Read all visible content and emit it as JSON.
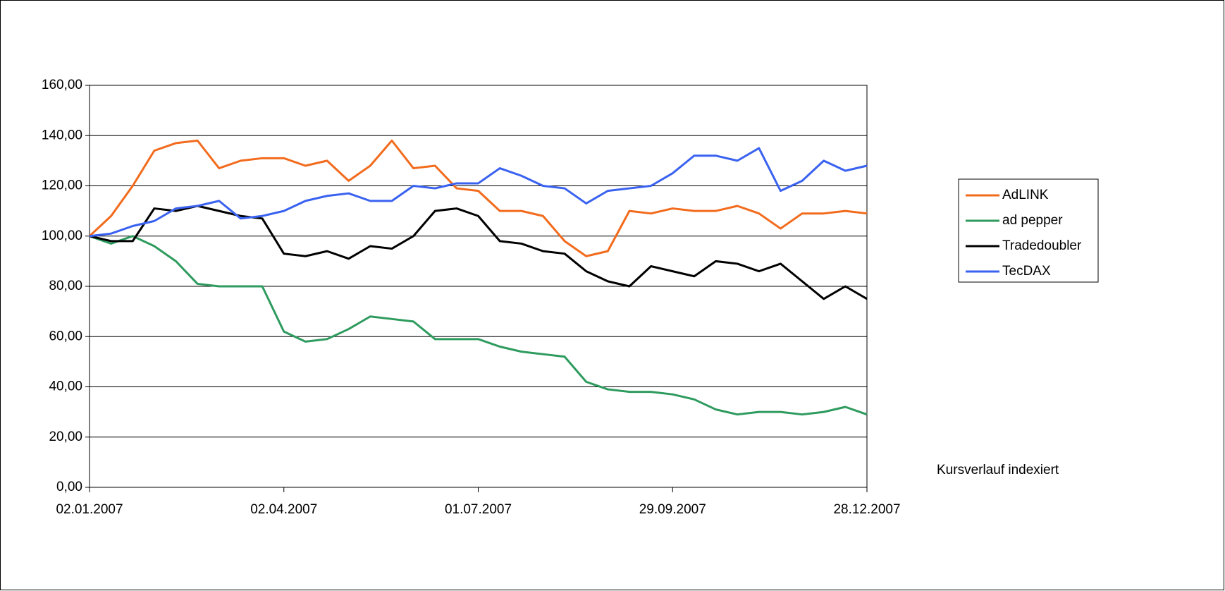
{
  "chart_data": {
    "type": "line",
    "annotation": "Kursverlauf indexiert",
    "x": [
      "2007-01-02",
      "2007-01-12",
      "2007-01-22",
      "2007-02-01",
      "2007-02-11",
      "2007-02-21",
      "2007-03-03",
      "2007-03-13",
      "2007-03-23",
      "2007-04-02",
      "2007-04-12",
      "2007-04-22",
      "2007-05-02",
      "2007-05-12",
      "2007-05-22",
      "2007-06-01",
      "2007-06-11",
      "2007-06-21",
      "2007-07-01",
      "2007-07-11",
      "2007-07-21",
      "2007-07-31",
      "2007-08-10",
      "2007-08-20",
      "2007-08-30",
      "2007-09-09",
      "2007-09-19",
      "2007-09-29",
      "2007-10-09",
      "2007-10-19",
      "2007-10-29",
      "2007-11-08",
      "2007-11-18",
      "2007-11-28",
      "2007-12-08",
      "2007-12-18",
      "2007-12-28"
    ],
    "series": [
      {
        "name": "AdLINK",
        "color": "#f26b1d",
        "values": [
          100,
          108,
          120,
          134,
          137,
          138,
          127,
          130,
          131,
          131,
          128,
          130,
          122,
          128,
          138,
          127,
          128,
          119,
          118,
          110,
          110,
          108,
          98,
          92,
          94,
          110,
          109,
          111,
          110,
          110,
          112,
          109,
          103,
          109,
          109,
          110,
          109
        ]
      },
      {
        "name": "ad pepper",
        "color": "#2e9b5e",
        "values": [
          100,
          97,
          100,
          96,
          90,
          81,
          80,
          80,
          80,
          62,
          58,
          59,
          63,
          68,
          67,
          66,
          59,
          59,
          59,
          56,
          54,
          53,
          52,
          42,
          39,
          38,
          38,
          37,
          35,
          31,
          29,
          30,
          30,
          29,
          30,
          32,
          29
        ]
      },
      {
        "name": "Tradedoubler",
        "color": "#000000",
        "values": [
          100,
          98,
          98,
          111,
          110,
          112,
          110,
          108,
          107,
          93,
          92,
          94,
          91,
          96,
          95,
          100,
          110,
          111,
          108,
          98,
          97,
          94,
          93,
          86,
          82,
          80,
          88,
          86,
          84,
          90,
          89,
          86,
          89,
          82,
          75,
          80,
          75
        ]
      },
      {
        "name": "TecDAX",
        "color": "#3a62f0",
        "values": [
          100,
          101,
          104,
          106,
          111,
          112,
          114,
          107,
          108,
          110,
          114,
          116,
          117,
          114,
          114,
          120,
          119,
          121,
          121,
          127,
          124,
          120,
          119,
          113,
          118,
          119,
          120,
          125,
          132,
          132,
          130,
          135,
          118,
          122,
          130,
          126,
          128
        ]
      }
    ],
    "xlim": [
      "2007-01-02",
      "2007-12-28"
    ],
    "xticks": [
      {
        "value": "2007-01-02",
        "label": "02.01.2007"
      },
      {
        "value": "2007-04-02",
        "label": "02.04.2007"
      },
      {
        "value": "2007-07-01",
        "label": "01.07.2007"
      },
      {
        "value": "2007-09-29",
        "label": "29.09.2007"
      },
      {
        "value": "2007-12-28",
        "label": "28.12.2007"
      }
    ],
    "ylim": [
      0,
      160
    ],
    "yticks": [
      {
        "value": 0,
        "label": "0,00"
      },
      {
        "value": 20,
        "label": "20,00"
      },
      {
        "value": 40,
        "label": "40,00"
      },
      {
        "value": 60,
        "label": "60,00"
      },
      {
        "value": 80,
        "label": "80,00"
      },
      {
        "value": 100,
        "label": "100,00"
      },
      {
        "value": 120,
        "label": "120,00"
      },
      {
        "value": 140,
        "label": "140,00"
      },
      {
        "value": 160,
        "label": "160,00"
      }
    ],
    "grid": true,
    "legend": "right"
  }
}
